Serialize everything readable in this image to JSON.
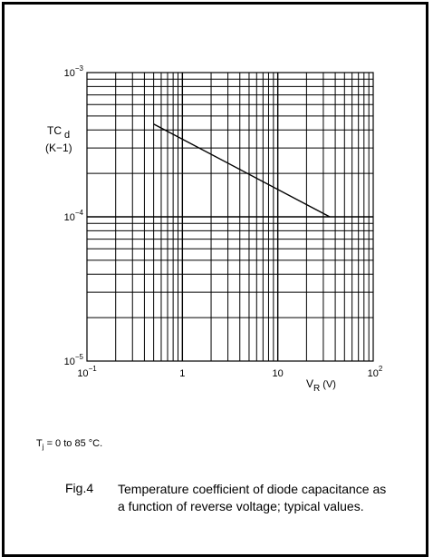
{
  "chart_data": {
    "type": "line",
    "scale": {
      "x": "log",
      "y": "log"
    },
    "xlim": [
      0.1,
      100
    ],
    "ylim": [
      1e-05,
      0.001
    ],
    "grid": true,
    "x_tick_labels": [
      {
        "base": "10",
        "exp": "−1"
      },
      {
        "text": "1"
      },
      {
        "text": "10"
      },
      {
        "base": "10",
        "exp": "2"
      }
    ],
    "y_tick_labels": [
      {
        "base": "10",
        "exp": "−3"
      },
      {
        "base": "10",
        "exp": "−4"
      },
      {
        "base": "10",
        "exp": "−5"
      }
    ],
    "xlabel": {
      "main": "V",
      "sub": "R",
      "unit": " (V)"
    },
    "ylabel": {
      "line1_main": "TC",
      "line1_sub": "d",
      "line2": "(K−1)"
    },
    "series": [
      {
        "x": [
          0.5,
          35
        ],
        "y": [
          0.00044,
          0.0001
        ]
      }
    ],
    "colors": {
      "line": "#000000",
      "grid": "#000000"
    }
  },
  "note": {
    "prefix": "T",
    "sub": "j",
    "rest": " = 0 to 85 °C."
  },
  "figure": {
    "number": "Fig.4",
    "caption": "Temperature coefficient of diode capacitance as a function of reverse voltage; typical values."
  }
}
